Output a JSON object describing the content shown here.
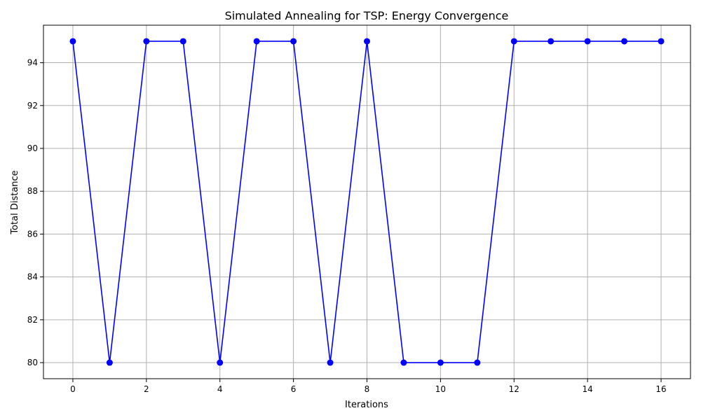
{
  "chart_data": {
    "type": "line",
    "title": "Simulated Annealing for TSP: Energy Convergence",
    "xlabel": "Iterations",
    "ylabel": "Total Distance",
    "x": [
      0,
      1,
      2,
      3,
      4,
      5,
      6,
      7,
      8,
      9,
      10,
      11,
      12,
      13,
      14,
      15,
      16
    ],
    "series": [
      {
        "values": [
          95,
          80,
          95,
          95,
          80,
          95,
          95,
          80,
          95,
          80,
          80,
          80,
          95,
          95,
          95,
          95,
          95
        ],
        "color": "#0000ff",
        "marker": "circle"
      }
    ],
    "xlim": [
      -0.8,
      16.8
    ],
    "ylim": [
      79.25,
      95.75
    ],
    "xticks": [
      0,
      2,
      4,
      6,
      8,
      10,
      12,
      14,
      16
    ],
    "yticks": [
      80,
      82,
      84,
      86,
      88,
      90,
      92,
      94
    ],
    "grid": true,
    "grid_color": "#b0b0b0"
  }
}
